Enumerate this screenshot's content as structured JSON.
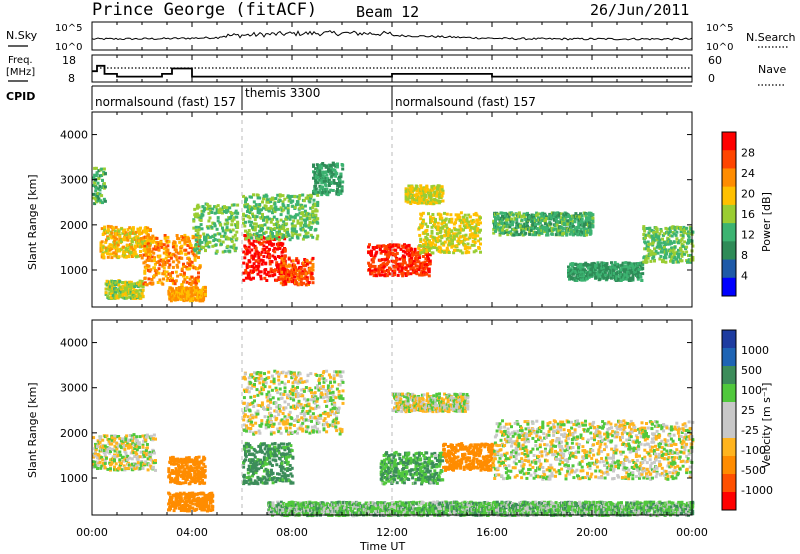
{
  "header": {
    "station": "Prince George (fitACF)",
    "beam": "Beam 12",
    "date": "26/Jun/2011"
  },
  "noise_panel": {
    "left_label": "N.Sky",
    "right_label": "N.Search",
    "left_ticks": [
      "10^5",
      "10^0"
    ],
    "right_ticks": [
      "10^5",
      "10^0"
    ]
  },
  "freq_panel": {
    "left_label_1": "Freq.",
    "left_label_2": "[MHz]",
    "right_label": "Nave",
    "left_ticks": [
      "18",
      "8"
    ],
    "right_ticks": [
      "60",
      "0"
    ]
  },
  "cpid": {
    "label": "CPID",
    "segments": [
      {
        "start_h": 0,
        "name": "normalsound (fast) 157"
      },
      {
        "start_h": 6,
        "name": "themis 3300"
      },
      {
        "start_h": 12,
        "name": "normalsound (fast) 157"
      }
    ]
  },
  "x_axis": {
    "label": "Time UT",
    "ticks": [
      "00:00",
      "04:00",
      "08:00",
      "12:00",
      "16:00",
      "20:00",
      "00:00"
    ]
  },
  "power_panel": {
    "ylabel": "Slant Range [km]",
    "yticks": [
      "1000",
      "2000",
      "3000",
      "4000"
    ],
    "colorbar_label": "Power [dB]",
    "colorbar_ticks": [
      "28",
      "24",
      "20",
      "16",
      "12",
      "8",
      "4"
    ],
    "colors": [
      "#ff0000",
      "#ff4500",
      "#ff8c00",
      "#ffc000",
      "#9acd32",
      "#3cb371",
      "#2e8b57",
      "#1e5aa8",
      "#0000ff"
    ]
  },
  "velocity_panel": {
    "ylabel": "Slant Range [km]",
    "yticks": [
      "1000",
      "2000",
      "3000",
      "4000"
    ],
    "colorbar_label": "Velocity [m s⁻¹]",
    "colorbar_ticks": [
      "1000",
      "500",
      "100",
      "25",
      "-25",
      "-100",
      "-500",
      "-1000"
    ],
    "colors": [
      "#1e3ca0",
      "#1e64b4",
      "#3c8c5a",
      "#50c83c",
      "#c8c8c8",
      "#c8c8c8",
      "#ffb41e",
      "#ff8c00",
      "#ff5000",
      "#ff0000"
    ]
  },
  "chart_data": [
    {
      "type": "line",
      "title": "Prince George (fitACF)",
      "series": [
        {
          "name": "N.Sky"
        },
        {
          "name": "N.Search"
        }
      ],
      "x_range_hours": [
        0,
        24
      ],
      "ylim_log10": [
        0,
        5
      ]
    },
    {
      "type": "line",
      "series": [
        {
          "name": "Freq.",
          "x": [
            0,
            0.2,
            0.5,
            1.0,
            2.0,
            2.8,
            3.2,
            3.8,
            4.0,
            6.0,
            7.0,
            12.0,
            16.0,
            24.0
          ],
          "values": [
            12,
            14,
            11,
            10,
            10,
            11,
            13,
            13,
            10,
            10,
            10,
            11,
            10,
            10
          ]
        },
        {
          "name": "Nave"
        }
      ],
      "x_range_hours": [
        0,
        24
      ],
      "ylim": [
        8,
        18
      ]
    },
    {
      "type": "heatmap",
      "quantity": "Power [dB]",
      "x_range_hours": [
        0,
        24
      ],
      "ylim_km": [
        180,
        4500
      ],
      "color_scale": [
        4,
        8,
        12,
        16,
        20,
        24,
        28
      ],
      "regions": [
        {
          "t": [
            0,
            0.5
          ],
          "r": [
            2500,
            3300
          ],
          "power": 8
        },
        {
          "t": [
            0.3,
            2.3
          ],
          "r": [
            1300,
            2000
          ],
          "power": 16
        },
        {
          "t": [
            0.5,
            2.0
          ],
          "r": [
            400,
            800
          ],
          "power": 12
        },
        {
          "t": [
            2.0,
            4.3
          ],
          "r": [
            700,
            1800
          ],
          "power": 20
        },
        {
          "t": [
            3.0,
            4.5
          ],
          "r": [
            350,
            650
          ],
          "power": 18
        },
        {
          "t": [
            4.0,
            5.8
          ],
          "r": [
            1400,
            2500
          ],
          "power": 10
        },
        {
          "t": [
            6.0,
            7.7
          ],
          "r": [
            800,
            1800
          ],
          "power": 28
        },
        {
          "t": [
            7.5,
            8.8
          ],
          "r": [
            700,
            1300
          ],
          "power": 24
        },
        {
          "t": [
            8.8,
            10.0
          ],
          "r": [
            2700,
            3400
          ],
          "power": 6
        },
        {
          "t": [
            6.0,
            9.0
          ],
          "r": [
            1700,
            2700
          ],
          "power": 10
        },
        {
          "t": [
            11.0,
            13.5
          ],
          "r": [
            900,
            1600
          ],
          "power": 26
        },
        {
          "t": [
            13.0,
            15.5
          ],
          "r": [
            1400,
            2300
          ],
          "power": 14
        },
        {
          "t": [
            12.5,
            14.0
          ],
          "r": [
            2500,
            2900
          ],
          "power": 14
        },
        {
          "t": [
            16.0,
            20.0
          ],
          "r": [
            1800,
            2300
          ],
          "power": 8
        },
        {
          "t": [
            19.0,
            22.0
          ],
          "r": [
            800,
            1200
          ],
          "power": 6
        },
        {
          "t": [
            22.0,
            24.0
          ],
          "r": [
            1200,
            2000
          ],
          "power": 10
        }
      ]
    },
    {
      "type": "heatmap",
      "quantity": "Velocity [m s⁻¹]",
      "x_range_hours": [
        0,
        24
      ],
      "ylim_km": [
        180,
        4500
      ],
      "color_scale": [
        -1000,
        -500,
        -100,
        -25,
        25,
        100,
        500,
        1000
      ],
      "regions": [
        {
          "t": [
            0,
            2.5
          ],
          "r": [
            1200,
            2000
          ],
          "velocity": 0
        },
        {
          "t": [
            3.0,
            4.8
          ],
          "r": [
            300,
            700
          ],
          "velocity": -200
        },
        {
          "t": [
            3.0,
            4.5
          ],
          "r": [
            900,
            1500
          ],
          "velocity": -200
        },
        {
          "t": [
            6.0,
            8.0
          ],
          "r": [
            900,
            1800
          ],
          "velocity": 150
        },
        {
          "t": [
            6.0,
            10.0
          ],
          "r": [
            2000,
            3400
          ],
          "velocity": 0
        },
        {
          "t": [
            11.5,
            14.0
          ],
          "r": [
            900,
            1600
          ],
          "velocity": 100
        },
        {
          "t": [
            14.0,
            16.0
          ],
          "r": [
            1200,
            1800
          ],
          "velocity": -200
        },
        {
          "t": [
            12.0,
            15.0
          ],
          "r": [
            2500,
            2900
          ],
          "velocity": 0
        },
        {
          "t": [
            16.0,
            24.0
          ],
          "r": [
            1000,
            2300
          ],
          "velocity": 0
        },
        {
          "t": [
            7.0,
            24.0
          ],
          "r": [
            200,
            500
          ],
          "velocity": 60
        }
      ]
    }
  ]
}
